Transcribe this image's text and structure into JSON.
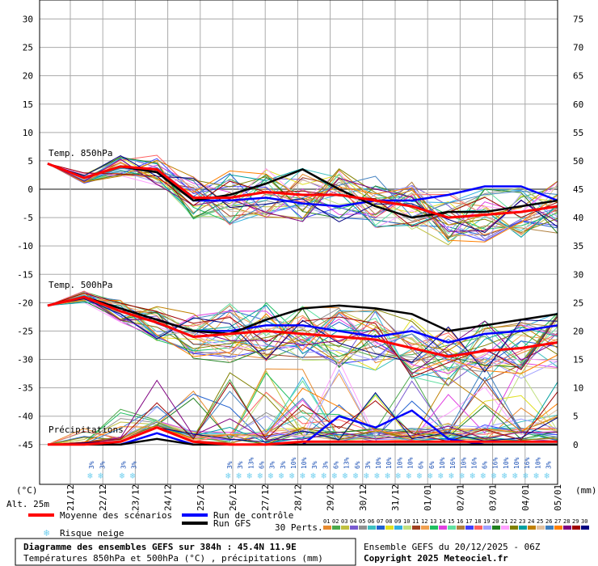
{
  "chart_data": {
    "type": "line",
    "title": "Diagramme des ensembles GEFS sur 384h : 45.4N 11.9E",
    "subtitle": "Températures 850hPa et 500hPa (°C) , précipitations (mm)",
    "run_info": "Ensemble GEFS du 20/12/2025 - 06Z",
    "copyright": "Copyright 2025 Meteociel.fr",
    "altitude": "Alt. 25m",
    "left_axis": {
      "unit": "(°C)",
      "ticks": [
        30,
        25,
        20,
        15,
        10,
        5,
        0,
        -5,
        -10,
        -15,
        -20,
        -25,
        -30,
        -35,
        -40,
        -45
      ],
      "ylim": [
        -45,
        30
      ]
    },
    "right_axis": {
      "unit": "(mm)",
      "ticks": [
        75,
        70,
        65,
        60,
        55,
        50,
        45,
        40,
        35,
        30,
        25,
        20,
        15,
        10,
        5,
        0
      ],
      "ylim": [
        0,
        75
      ]
    },
    "x_dates": [
      "21/12",
      "22/12",
      "23/12",
      "24/12",
      "25/12",
      "26/12",
      "27/12",
      "28/12",
      "29/12",
      "30/12",
      "31/12",
      "01/01",
      "02/01",
      "03/01",
      "04/01",
      "05/01"
    ],
    "panel_labels": {
      "t850": "Temp. 850hPa",
      "t500": "Temp. 500hPa",
      "precip": "Précipitations"
    },
    "series": [
      {
        "name": "Moyenne des scénarios",
        "t850": [
          4.5,
          2,
          4,
          3.5,
          -1.5,
          -1.5,
          -0.5,
          -1,
          -1,
          -2,
          -3,
          -5,
          -4.5,
          -4,
          -3
        ],
        "t500": [
          -20.5,
          -19,
          -21.5,
          -23.5,
          -26,
          -25.5,
          -25,
          -25.5,
          -26,
          -26.5,
          -28,
          -29.5,
          -28.5,
          -28,
          -27
        ],
        "precip": [
          0,
          0,
          0.5,
          3,
          0.5,
          0,
          0,
          0.5,
          0.5,
          0.5,
          0.5,
          0.5,
          0.5,
          0.5,
          0.5
        ]
      },
      {
        "name": "Run de contrôle",
        "t850": [
          4.5,
          2,
          4,
          3,
          -2,
          -2,
          -1.5,
          -2.5,
          -3,
          -2,
          -2,
          -1,
          0.5,
          0.5,
          -2
        ],
        "t500": [
          -20.5,
          -19,
          -21,
          -23,
          -25,
          -25,
          -24,
          -24,
          -25,
          -26,
          -25,
          -27,
          -25.5,
          -25,
          -24
        ],
        "precip": [
          0,
          0,
          0,
          2,
          0,
          0,
          0,
          0,
          5,
          3,
          6,
          1,
          0,
          0,
          0
        ]
      },
      {
        "name": "Run GFS",
        "t850": [
          4.5,
          2,
          4,
          3,
          -2,
          -1,
          1,
          3.5,
          0,
          -3,
          -5,
          -4,
          -4,
          -3,
          -2
        ],
        "t500": [
          -20.5,
          -19,
          -21,
          -23,
          -25,
          -25.5,
          -23,
          -21,
          -20.5,
          -21,
          -22,
          -25,
          -24,
          -23,
          -22
        ],
        "precip": [
          0,
          0,
          0,
          1,
          0,
          0,
          0,
          0,
          0,
          0,
          0,
          0,
          0,
          0,
          0
        ]
      }
    ],
    "snow_risk": [
      "",
      "",
      "",
      "",
      "3%",
      "3%",
      "",
      "3%",
      "3%",
      "",
      "",
      "",
      "",
      "",
      "",
      "",
      "",
      "3%",
      "3%",
      "13%",
      "6%",
      "3%",
      "3%",
      "10%",
      "10%",
      "3%",
      "3%",
      "6%",
      "13%",
      "6%",
      "3%",
      "10%",
      "10%",
      "10%",
      "10%",
      "6%",
      "6%",
      "10%",
      "16%",
      "10%",
      "16%",
      "6%",
      "16%",
      "10%",
      "10%",
      "16%",
      "10%",
      "3%"
    ],
    "legend": {
      "mean_label": "Moyenne des scénarios",
      "control_label": "Run de contrôle",
      "gfs_label": "Run GFS",
      "snow_label": "Risque neige",
      "perts_label": "30 Perts.",
      "pert_numbers": [
        "01",
        "02",
        "03",
        "04",
        "05",
        "06",
        "07",
        "08",
        "09",
        "10",
        "11",
        "12",
        "13",
        "14",
        "15",
        "16",
        "17",
        "18",
        "19",
        "20",
        "21",
        "22",
        "23",
        "24",
        "25",
        "26",
        "27",
        "28",
        "29",
        "30"
      ],
      "pert_colors": [
        "#e88a2e",
        "#4aa84a",
        "#c0c040",
        "#7a5ad0",
        "#909090",
        "#3cc0c0",
        "#2060d0",
        "#e0e020",
        "#30b0e0",
        "#c0e080",
        "#a04020",
        "#f0a050",
        "#20c060",
        "#e040e0",
        "#60e0a0",
        "#b08040",
        "#4040ff",
        "#ff6060",
        "#a0a0ff",
        "#208020",
        "#ffa0ff",
        "#808000",
        "#00a0a0",
        "#c08000",
        "#e0c0a0",
        "#4080c0",
        "#ff8000",
        "#800080",
        "#a00000",
        "#000080"
      ]
    },
    "colors": {
      "mean": "#ff0000",
      "control": "#0000ff",
      "gfs": "#000000",
      "snow": "#6fcfef",
      "grid": "#aaaaaa"
    }
  }
}
